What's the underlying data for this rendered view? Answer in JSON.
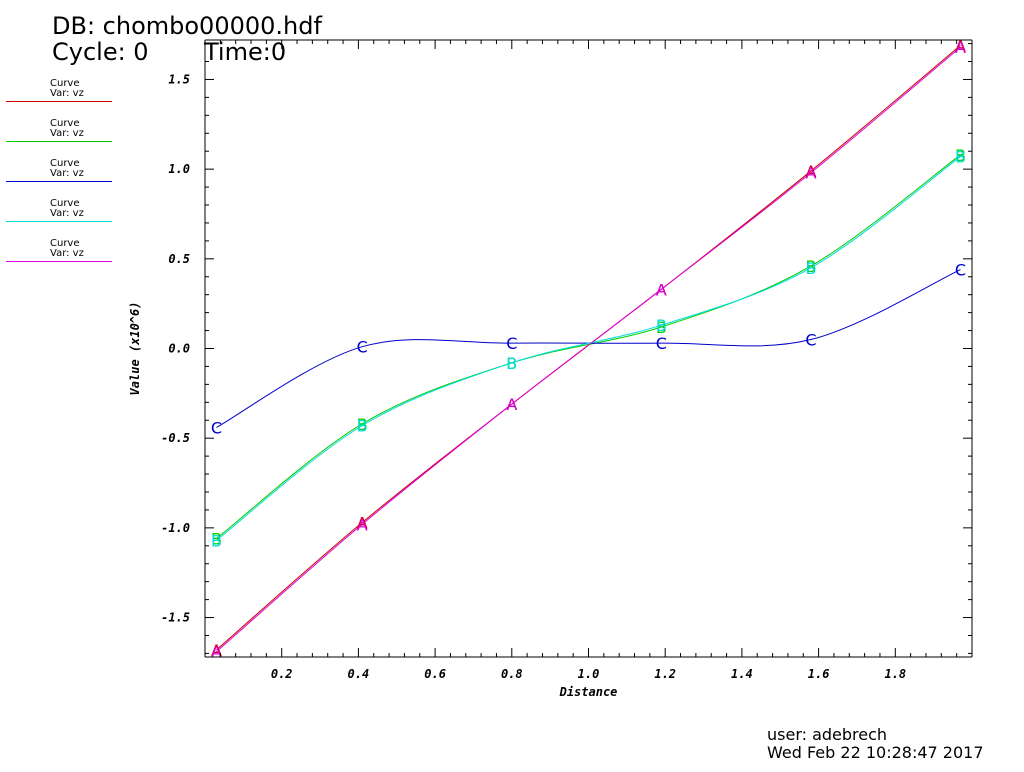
{
  "header": {
    "db_title": "DB: chombo00000.hdf",
    "cycle": "Cycle: 0",
    "time": "Time:0"
  },
  "legend": [
    {
      "line1": "Curve",
      "line2": "Var: vz",
      "color": "#cc0000"
    },
    {
      "line1": "Curve",
      "line2": "Var: vz",
      "color": "#00cc00"
    },
    {
      "line1": "Curve",
      "line2": "Var: vz",
      "color": "#0000cc"
    },
    {
      "line1": "Curve",
      "line2": "Var: vz",
      "color": "#00dddd"
    },
    {
      "line1": "Curve",
      "line2": "Var: vz",
      "color": "#dd00dd"
    }
  ],
  "footer": {
    "user": "user: adebrech",
    "date": "Wed Feb 22 10:28:47 2017"
  },
  "chart_data": {
    "type": "line",
    "title": "",
    "xlabel": "Distance",
    "ylabel": "Value (x10^6)",
    "xlim": [
      0.0,
      2.0
    ],
    "ylim": [
      -1.72,
      1.72
    ],
    "x_ticks": [
      0.2,
      0.4,
      0.6,
      0.8,
      1.0,
      1.2,
      1.4,
      1.6,
      1.8
    ],
    "x_tick_labels": [
      "0.2",
      "0.4",
      "0.6",
      "0.8",
      "1.0",
      "1.2",
      "1.4",
      "1.6",
      "1.8"
    ],
    "y_ticks": [
      -1.5,
      -1.0,
      -0.5,
      0.0,
      0.5,
      1.0,
      1.5
    ],
    "y_tick_labels": [
      "-1.5",
      "-1.0",
      "-0.5",
      "0.0",
      "0.5",
      "1.0",
      "1.5"
    ],
    "grid": false,
    "legend_position": "left",
    "series": [
      {
        "label_letter": "A",
        "color": "#cc0000",
        "x": [
          0.03,
          0.41,
          0.8,
          1.19,
          1.58,
          1.97
        ],
        "y": [
          -1.68,
          -0.97,
          -0.31,
          0.33,
          0.99,
          1.69
        ]
      },
      {
        "label_letter": "B",
        "color": "#00cc00",
        "x": [
          0.03,
          0.41,
          0.8,
          1.19,
          1.58,
          1.97
        ],
        "y": [
          -1.06,
          -0.42,
          -0.08,
          0.12,
          0.46,
          1.08
        ]
      },
      {
        "label_letter": "C",
        "color": "#0000cc",
        "x": [
          0.03,
          0.41,
          0.8,
          1.19,
          1.58,
          1.97
        ],
        "y": [
          -0.44,
          0.01,
          0.03,
          0.03,
          0.05,
          0.44
        ]
      },
      {
        "label_letter": "B",
        "color": "#00dddd",
        "x": [
          0.03,
          0.41,
          0.8,
          1.19,
          1.58,
          1.97
        ],
        "y": [
          -1.07,
          -0.43,
          -0.08,
          0.13,
          0.45,
          1.07
        ]
      },
      {
        "label_letter": "A",
        "color": "#dd00dd",
        "x": [
          0.03,
          0.41,
          0.8,
          1.19,
          1.58,
          1.97
        ],
        "y": [
          -1.69,
          -0.98,
          -0.31,
          0.33,
          0.98,
          1.68
        ]
      }
    ]
  }
}
